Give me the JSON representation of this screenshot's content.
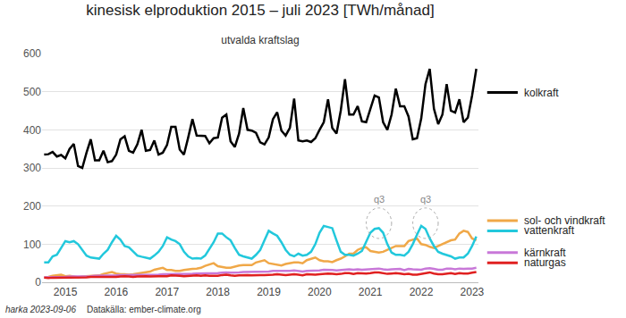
{
  "chart_data": {
    "type": "line",
    "title": "kinesisk elproduktion 2015 – juli 2023 [TWh/månad]",
    "subtitle": "utvalda kraftslag",
    "credit": "harka 2023-09-06",
    "source": "Datakälla: ember-climate.org",
    "categories": [
      null,
      null,
      null,
      null,
      null,
      "2015",
      null,
      null,
      null,
      null,
      null,
      null,
      null,
      null,
      null,
      null,
      null,
      "2016",
      null,
      null,
      null,
      null,
      null,
      null,
      null,
      null,
      null,
      null,
      null,
      "2017",
      null,
      null,
      null,
      null,
      null,
      null,
      null,
      null,
      null,
      null,
      null,
      "2018",
      null,
      null,
      null,
      null,
      null,
      null,
      null,
      null,
      null,
      null,
      null,
      "2019",
      null,
      null,
      null,
      null,
      null,
      null,
      null,
      null,
      null,
      null,
      null,
      "2020",
      null,
      null,
      null,
      null,
      null,
      null,
      null,
      null,
      null,
      null,
      null,
      "2021",
      null,
      null,
      null,
      null,
      null,
      null,
      null,
      null,
      null,
      null,
      null,
      "2022",
      null,
      null,
      null,
      null,
      null,
      null,
      null,
      null,
      null,
      null,
      null,
      "2023",
      null
    ],
    "ylim": [
      0,
      600
    ],
    "yticks": [
      0,
      100,
      200,
      300,
      400,
      500,
      600
    ],
    "grid": true,
    "annotations": [
      {
        "text": "q3",
        "x": 79,
        "y": 200
      },
      {
        "text": "q3",
        "x": 90,
        "y": 200
      }
    ],
    "series": [
      {
        "name": "kolkraft",
        "color": "#000000",
        "values": [
          335,
          336,
          342,
          330,
          334,
          325,
          350,
          363,
          305,
          300,
          340,
          375,
          320,
          320,
          345,
          315,
          318,
          335,
          375,
          383,
          345,
          340,
          362,
          400,
          345,
          347,
          372,
          335,
          340,
          360,
          408,
          408,
          348,
          335,
          380,
          428,
          385,
          385,
          384,
          365,
          378,
          380,
          432,
          440,
          370,
          355,
          390,
          457,
          400,
          398,
          392,
          367,
          362,
          380,
          428,
          446,
          398,
          385,
          405,
          482,
          372,
          370,
          372,
          368,
          378,
          400,
          420,
          480,
          405,
          390,
          450,
          533,
          440,
          440,
          462,
          422,
          420,
          455,
          490,
          485,
          420,
          400,
          440,
          508,
          462,
          462,
          435,
          375,
          378,
          430,
          520,
          560,
          455,
          415,
          440,
          520,
          450,
          445,
          480,
          420,
          432,
          490,
          560
        ]
      },
      {
        "name": "sol- och vindkraft",
        "color": "#f0a848",
        "values": [
          13,
          14,
          17,
          18,
          20,
          16,
          17,
          15,
          13,
          15,
          16,
          17,
          18,
          18,
          22,
          24,
          27,
          23,
          21,
          21,
          20,
          21,
          23,
          25,
          27,
          28,
          33,
          35,
          38,
          32,
          32,
          30,
          30,
          32,
          34,
          35,
          36,
          38,
          43,
          46,
          50,
          42,
          40,
          38,
          38,
          41,
          44,
          45,
          45,
          45,
          52,
          55,
          58,
          50,
          48,
          45,
          44,
          48,
          50,
          52,
          52,
          50,
          58,
          62,
          65,
          58,
          55,
          55,
          53,
          58,
          62,
          68,
          75,
          75,
          85,
          90,
          92,
          82,
          80,
          78,
          80,
          85,
          90,
          95,
          95,
          95,
          108,
          112,
          115,
          100,
          98,
          93,
          90,
          95,
          100,
          105,
          110,
          112,
          128,
          135,
          132,
          115,
          110
        ]
      },
      {
        "name": "vattenkraft",
        "color": "#22c8dc",
        "values": [
          52,
          52,
          68,
          72,
          90,
          108,
          105,
          108,
          100,
          85,
          70,
          65,
          64,
          62,
          75,
          85,
          105,
          122,
          112,
          95,
          92,
          80,
          70,
          67,
          65,
          62,
          70,
          80,
          95,
          118,
          112,
          108,
          100,
          80,
          68,
          62,
          63,
          62,
          70,
          88,
          105,
          128,
          128,
          118,
          110,
          90,
          72,
          68,
          65,
          62,
          72,
          85,
          110,
          135,
          128,
          122,
          105,
          85,
          72,
          68,
          75,
          70,
          72,
          80,
          100,
          130,
          148,
          145,
          142,
          110,
          80,
          72,
          72,
          70,
          75,
          82,
          105,
          130,
          140,
          142,
          130,
          100,
          78,
          72,
          72,
          70,
          80,
          100,
          125,
          148,
          140,
          115,
          95,
          80,
          75,
          72,
          68,
          62,
          65,
          65,
          75,
          95,
          120
        ]
      },
      {
        "name": "kärnkraft",
        "color": "#c878d8",
        "values": [
          13,
          13,
          14,
          14,
          14,
          14,
          15,
          15,
          15,
          15,
          15,
          16,
          17,
          17,
          17,
          17,
          18,
          18,
          19,
          19,
          19,
          19,
          20,
          20,
          20,
          20,
          20,
          20,
          21,
          21,
          22,
          22,
          21,
          21,
          22,
          22,
          23,
          23,
          23,
          23,
          24,
          24,
          25,
          26,
          25,
          25,
          26,
          27,
          27,
          27,
          28,
          28,
          28,
          28,
          30,
          30,
          29,
          29,
          30,
          31,
          30,
          28,
          30,
          30,
          31,
          31,
          33,
          33,
          32,
          31,
          32,
          34,
          34,
          33,
          34,
          33,
          34,
          34,
          36,
          36,
          34,
          33,
          34,
          35,
          35,
          32,
          35,
          34,
          34,
          33,
          36,
          37,
          35,
          33,
          33,
          36,
          36,
          34,
          36,
          35,
          36,
          36,
          38
        ]
      },
      {
        "name": "naturgas",
        "color": "#e02020",
        "values": [
          12,
          11,
          12,
          12,
          12,
          12,
          13,
          13,
          12,
          12,
          13,
          14,
          14,
          13,
          14,
          14,
          14,
          14,
          15,
          16,
          15,
          14,
          15,
          16,
          16,
          15,
          16,
          16,
          16,
          16,
          18,
          18,
          17,
          16,
          17,
          18,
          18,
          17,
          18,
          17,
          17,
          17,
          19,
          20,
          18,
          17,
          18,
          19,
          19,
          18,
          19,
          19,
          19,
          19,
          20,
          21,
          20,
          19,
          20,
          21,
          20,
          18,
          21,
          20,
          20,
          21,
          22,
          23,
          22,
          21,
          22,
          24,
          24,
          22,
          24,
          23,
          23,
          24,
          26,
          26,
          24,
          22,
          23,
          24,
          23,
          21,
          22,
          20,
          20,
          22,
          24,
          26,
          23,
          21,
          21,
          23,
          24,
          22,
          24,
          23,
          23,
          25,
          27
        ]
      }
    ]
  }
}
